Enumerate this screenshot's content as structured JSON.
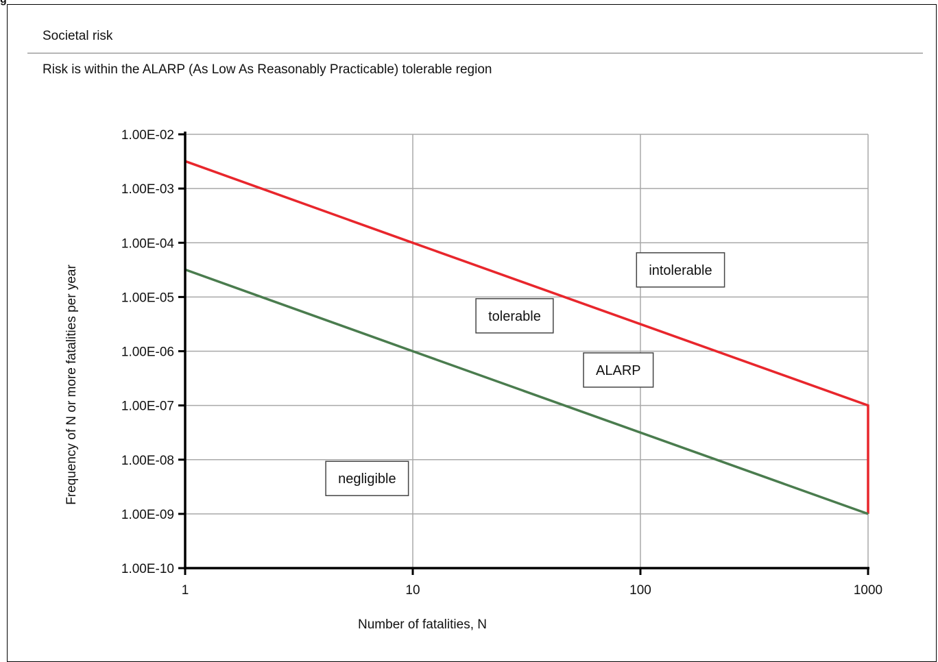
{
  "figure": {
    "tag": "g"
  },
  "panel": {
    "title": "Societal risk",
    "summary": "Risk is within the ALARP (As Low As Reasonably Practicable) tolerable region"
  },
  "chart_data": {
    "type": "line",
    "xscale": "log",
    "yscale": "log",
    "xlim": [
      1,
      1000
    ],
    "ylim": [
      1e-10,
      0.01
    ],
    "xlabel": "Number of fatalities, N",
    "ylabel": "Frequency of N or more fatalities per year",
    "x_ticks": [
      {
        "value": 1,
        "label": "1"
      },
      {
        "value": 10,
        "label": "10"
      },
      {
        "value": 100,
        "label": "100"
      },
      {
        "value": 1000,
        "label": "1000"
      }
    ],
    "y_ticks": [
      {
        "value": 0.01,
        "label": "1.00E-02"
      },
      {
        "value": 0.001,
        "label": "1.00E-03"
      },
      {
        "value": 0.0001,
        "label": "1.00E-04"
      },
      {
        "value": 1e-05,
        "label": "1.00E-05"
      },
      {
        "value": 1e-06,
        "label": "1.00E-06"
      },
      {
        "value": 1e-07,
        "label": "1.00E-07"
      },
      {
        "value": 1e-08,
        "label": "1.00E-08"
      },
      {
        "value": 1e-09,
        "label": "1.00E-09"
      },
      {
        "value": 1e-10,
        "label": "1.00E-10"
      }
    ],
    "grid": true,
    "series": [
      {
        "color": "#e8262c",
        "points": [
          [
            1,
            0.0032
          ],
          [
            10,
            0.0001
          ],
          [
            1000,
            1e-07
          ],
          [
            1000,
            1e-09
          ]
        ]
      },
      {
        "color": "#4a7c4e",
        "points": [
          [
            1,
            3.2e-05
          ],
          [
            10,
            1e-06
          ],
          [
            1000,
            1e-09
          ]
        ]
      }
    ],
    "annotations": [
      {
        "text": "intolerable",
        "x": 150,
        "y": 3.16e-05
      },
      {
        "text": "tolerable",
        "x": 28,
        "y": 4.5e-06
      },
      {
        "text": "ALARP",
        "x": 80,
        "y": 4.5e-07
      },
      {
        "text": "negligible",
        "x": 6.3,
        "y": 4.5e-09
      }
    ]
  }
}
